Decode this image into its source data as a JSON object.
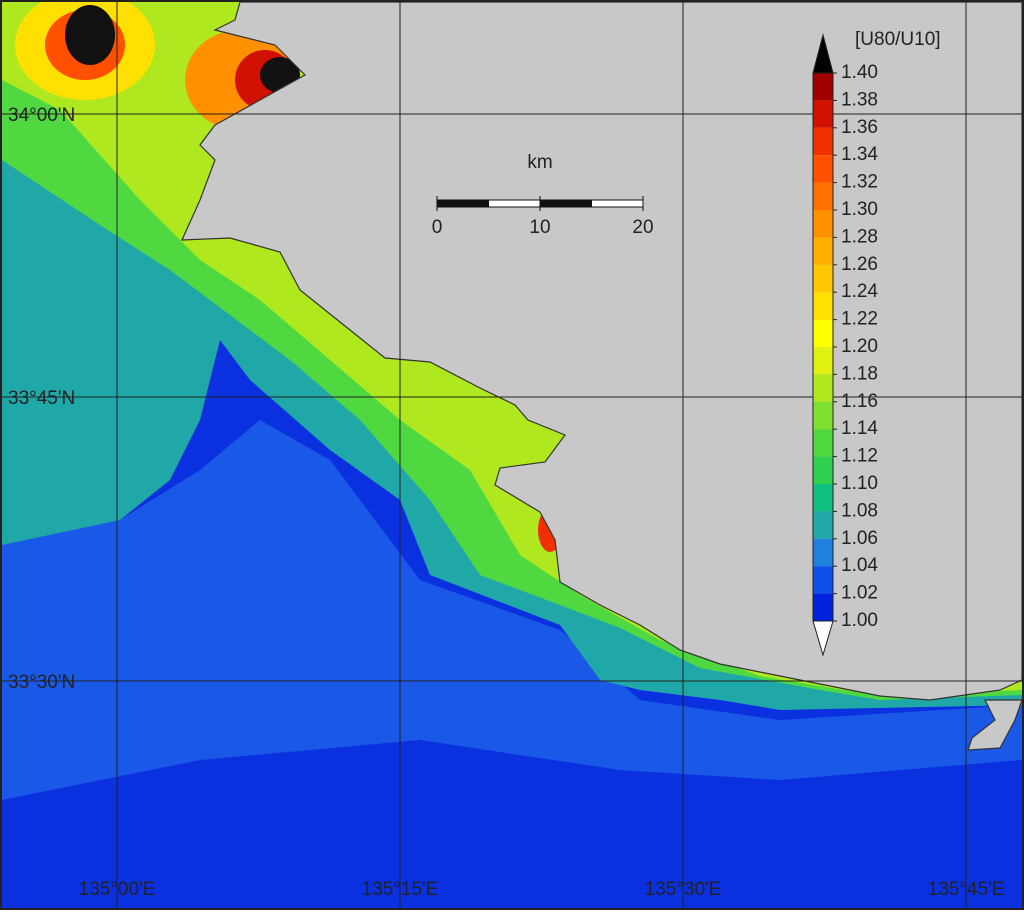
{
  "map": {
    "lat_labels": [
      "34°00'N",
      "33°45'N",
      "33°30'N"
    ],
    "lon_labels": [
      "135°00'E",
      "135°15'E",
      "135°30'E",
      "135°45'E"
    ],
    "scale_bar": {
      "unit": "km",
      "ticks": [
        0,
        10,
        20
      ]
    },
    "colorbar": {
      "title": "[U80/U10]",
      "ticks": [
        {
          "value": 1.4,
          "label": "1.40"
        },
        {
          "value": 1.38,
          "label": "1.38"
        },
        {
          "value": 1.36,
          "label": "1.36"
        },
        {
          "value": 1.34,
          "label": "1.34"
        },
        {
          "value": 1.32,
          "label": "1.32"
        },
        {
          "value": 1.3,
          "label": "1.30"
        },
        {
          "value": 1.28,
          "label": "1.28"
        },
        {
          "value": 1.26,
          "label": "1.26"
        },
        {
          "value": 1.24,
          "label": "1.24"
        },
        {
          "value": 1.22,
          "label": "1.22"
        },
        {
          "value": 1.2,
          "label": "1.20"
        },
        {
          "value": 1.18,
          "label": "1.18"
        },
        {
          "value": 1.16,
          "label": "1.16"
        },
        {
          "value": 1.14,
          "label": "1.14"
        },
        {
          "value": 1.12,
          "label": "1.12"
        },
        {
          "value": 1.1,
          "label": "1.10"
        },
        {
          "value": 1.08,
          "label": "1.08"
        },
        {
          "value": 1.06,
          "label": "1.06"
        },
        {
          "value": 1.04,
          "label": "1.04"
        },
        {
          "value": 1.02,
          "label": "1.02"
        },
        {
          "value": 1.0,
          "label": "1.00"
        }
      ],
      "colors": [
        "#a00000",
        "#d01000",
        "#f03000",
        "#ff5000",
        "#ff7000",
        "#ff9000",
        "#ffb000",
        "#ffc800",
        "#ffe000",
        "#ffff00",
        "#e0f010",
        "#b0e820",
        "#80e030",
        "#50d840",
        "#30d050",
        "#10c080",
        "#20a8a8",
        "#2080e0",
        "#1050e8",
        "#0022dd"
      ]
    }
  }
}
